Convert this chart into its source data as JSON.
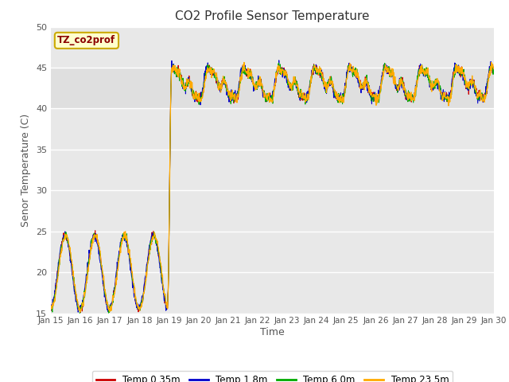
{
  "title": "CO2 Profile Sensor Temperature",
  "xlabel": "Time",
  "ylabel": "Senor Temperature (C)",
  "ylim": [
    15,
    50
  ],
  "background_color": "#ffffff",
  "plot_bg_color": "#e8e8e8",
  "series": {
    "temp_035": {
      "label": "Temp 0.35m",
      "color": "#cc0000"
    },
    "temp_18": {
      "label": "Temp 1.8m",
      "color": "#0000cc"
    },
    "temp_60": {
      "label": "Temp 6.0m",
      "color": "#00aa00"
    },
    "temp_235": {
      "label": "Temp 23.5m",
      "color": "#ffaa00"
    }
  },
  "tick_labels": [
    "Jan 15",
    "Jan 16",
    "Jan 17",
    "Jan 18",
    "Jan 19",
    "Jan 20",
    "Jan 21",
    "Jan 22",
    "Jan 23",
    "Jan 24",
    "Jan 25",
    "Jan 26",
    "Jan 27",
    "Jan 28",
    "Jan 29",
    "Jan 30"
  ],
  "yticks": [
    15,
    20,
    25,
    30,
    35,
    40,
    45,
    50
  ],
  "n_points": 1500,
  "transition_day": 4.0,
  "pre_base": 20.0,
  "pre_amp": 4.5,
  "post_base": 43.0,
  "post_amp": 1.5,
  "post_period": 1.2,
  "shaded_band": [
    40,
    45
  ]
}
